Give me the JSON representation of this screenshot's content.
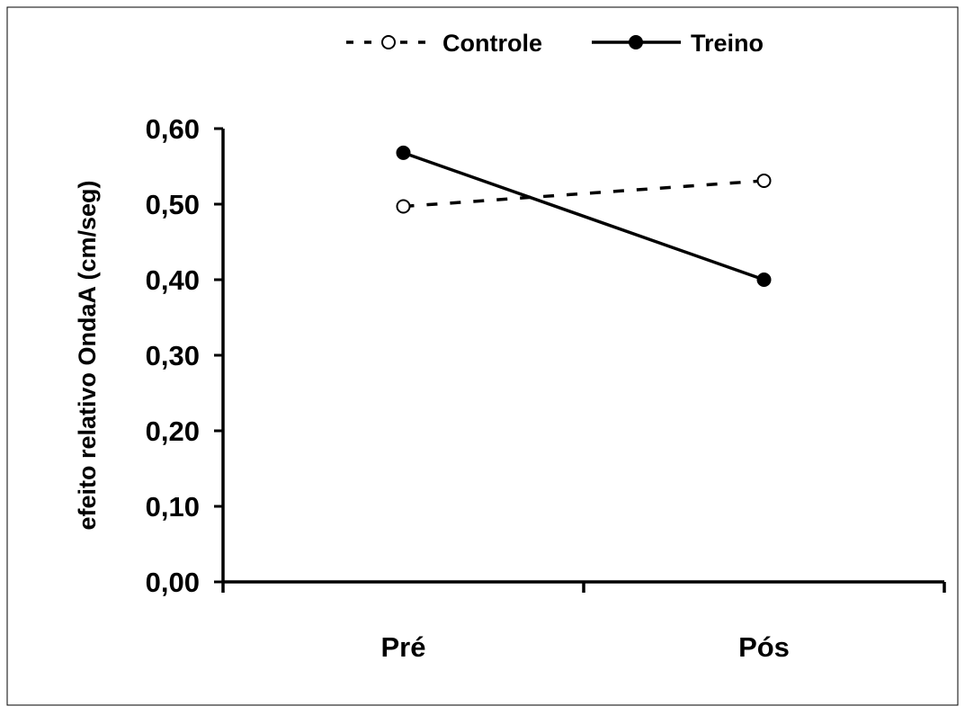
{
  "chart_data": {
    "type": "line",
    "categories": [
      "Pré",
      "Pós"
    ],
    "series": [
      {
        "name": "Controle",
        "values": [
          0.497,
          0.531
        ],
        "line_style": "dashed",
        "marker": "open-circle",
        "color": "#000000"
      },
      {
        "name": "Treino",
        "values": [
          0.568,
          0.4
        ],
        "line_style": "solid",
        "marker": "filled-circle",
        "color": "#000000"
      }
    ],
    "ylabel": "efeito relativo OndaA (cm/seg)",
    "xlabel": "",
    "ylim": [
      0,
      0.6
    ],
    "yticks": [
      0,
      0.1,
      0.2,
      0.3,
      0.4,
      0.5,
      0.6
    ],
    "ytick_labels": [
      "0,00",
      "0,10",
      "0,20",
      "0,30",
      "0,40",
      "0,50",
      "0,60"
    ],
    "grid": false,
    "legend_position": "top-center"
  }
}
